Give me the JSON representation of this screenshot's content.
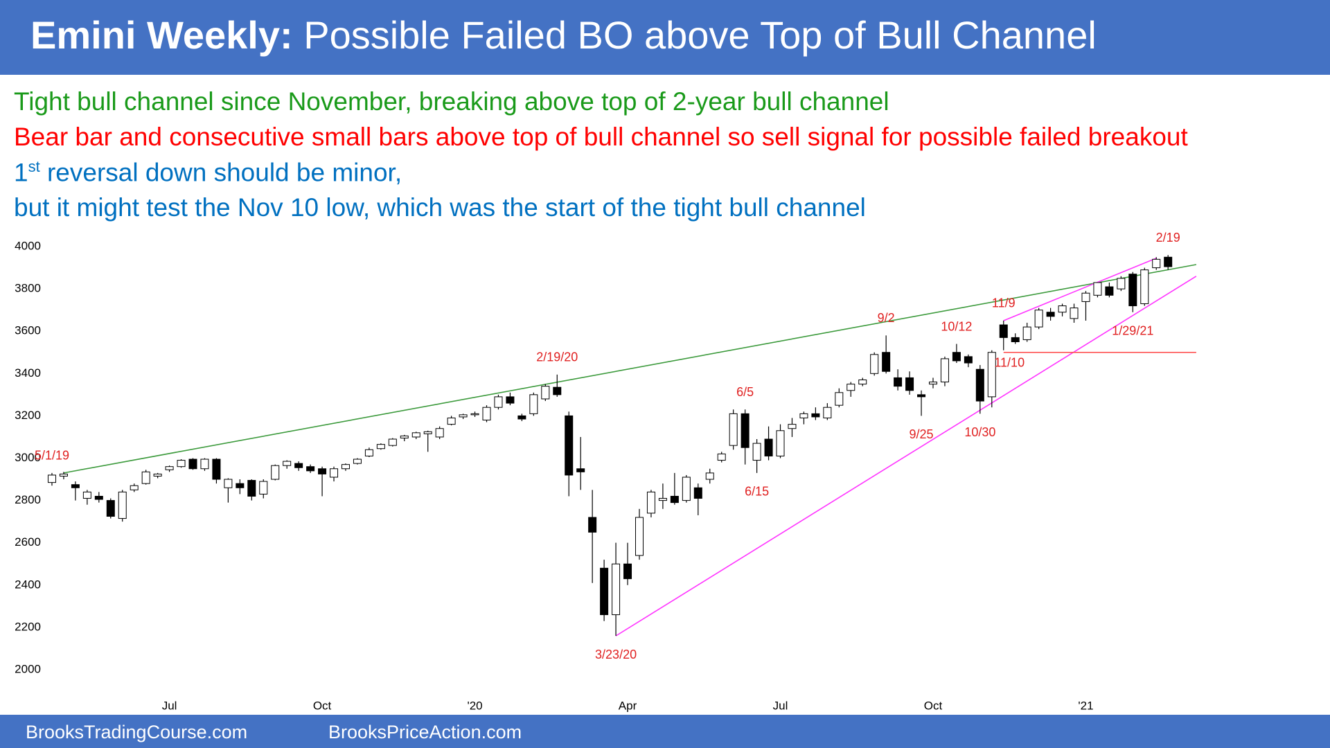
{
  "header": {
    "title_bold": "Emini Weekly:",
    "title": "Possible Failed BO above Top of Bull Channel"
  },
  "notes": [
    {
      "text": "Tight bull channel since November, breaking above top of 2-year bull channel",
      "color": "#1a9a1a"
    },
    {
      "text": "Bear bar and consecutive small bars above top of bull channel so sell signal for possible failed breakout",
      "color": "#ff0000"
    },
    {
      "text": "1",
      "sup": "st",
      "rest": " reversal down should be minor,",
      "color": "#0070c0"
    },
    {
      "text": "but it might test the Nov 10 low, which was the start of the tight bull channel",
      "color": "#0070c0"
    }
  ],
  "chart_data": {
    "type": "candlestick",
    "xlim": [
      -3,
      97.5
    ],
    "ylim": [
      1920,
      4080
    ],
    "yticks": [
      2000,
      2200,
      2400,
      2600,
      2800,
      3000,
      3200,
      3400,
      3600,
      3800,
      4000
    ],
    "xticks": [
      {
        "value": 10,
        "label": "Jul"
      },
      {
        "value": 23,
        "label": "Oct"
      },
      {
        "value": 36,
        "label": "'20"
      },
      {
        "value": 49,
        "label": "Apr"
      },
      {
        "value": 62,
        "label": "Jul"
      },
      {
        "value": 75,
        "label": "Oct"
      },
      {
        "value": 88,
        "label": "'21"
      }
    ],
    "up_color": "#ffffff",
    "down_color": "#000000",
    "open": [
      2885,
      2915,
      2875,
      2810,
      2820,
      2800,
      2715,
      2850,
      2880,
      2915,
      2945,
      2960,
      2995,
      2950,
      2995,
      2860,
      2880,
      2895,
      2830,
      2900,
      2965,
      2975,
      2960,
      2950,
      2910,
      2950,
      2975,
      3010,
      3045,
      3060,
      3095,
      3100,
      3115,
      3100,
      3160,
      3195,
      3205,
      3180,
      3240,
      3290,
      3200,
      3210,
      3280,
      3335,
      3200,
      2950,
      2720,
      2480,
      2260,
      2500,
      2540,
      2740,
      2800,
      2820,
      2800,
      2860,
      2900,
      2990,
      3060,
      3210,
      2990,
      3090,
      3010,
      3140,
      3190,
      3210,
      3190,
      3250,
      3320,
      3350,
      3400,
      3500,
      3380,
      3380,
      3300,
      3350,
      3360,
      3500,
      3480,
      3420,
      3290,
      3630,
      3570,
      3560,
      3620,
      3690,
      3690,
      3660,
      3740,
      3770,
      3810,
      3800,
      3870,
      3730,
      3900,
      3950
    ],
    "high": [
      2930,
      2935,
      2890,
      2850,
      2840,
      2810,
      2850,
      2880,
      2945,
      2930,
      2965,
      2995,
      3000,
      3000,
      3000,
      2905,
      2900,
      2900,
      2900,
      2970,
      2990,
      2985,
      2970,
      2960,
      2960,
      2975,
      3000,
      3050,
      3070,
      3095,
      3110,
      3125,
      3130,
      3150,
      3200,
      3210,
      3220,
      3250,
      3300,
      3310,
      3210,
      3310,
      3350,
      3395,
      3220,
      3100,
      2850,
      2520,
      2600,
      2600,
      2760,
      2850,
      2880,
      2930,
      2920,
      2880,
      2950,
      3030,
      3230,
      3230,
      3090,
      3150,
      3160,
      3190,
      3220,
      3240,
      3260,
      3330,
      3360,
      3380,
      3500,
      3580,
      3420,
      3410,
      3320,
      3380,
      3480,
      3540,
      3490,
      3440,
      3510,
      3650,
      3590,
      3640,
      3710,
      3710,
      3730,
      3730,
      3790,
      3830,
      3830,
      3860,
      3880,
      3900,
      3950,
      3960
    ],
    "low": [
      2870,
      2900,
      2800,
      2780,
      2790,
      2715,
      2700,
      2840,
      2875,
      2905,
      2935,
      2955,
      2945,
      2940,
      2880,
      2790,
      2830,
      2800,
      2810,
      2895,
      2950,
      2940,
      2930,
      2820,
      2890,
      2940,
      2970,
      3005,
      3040,
      3055,
      3080,
      3090,
      3030,
      3090,
      3155,
      3185,
      3195,
      3170,
      3230,
      3250,
      3175,
      3200,
      3270,
      3290,
      2820,
      2850,
      2410,
      2230,
      2160,
      2400,
      2520,
      2720,
      2760,
      2780,
      2790,
      2730,
      2880,
      2980,
      3040,
      2970,
      2930,
      2990,
      3000,
      3100,
      3160,
      3180,
      3180,
      3240,
      3290,
      3340,
      3390,
      3400,
      3320,
      3300,
      3200,
      3330,
      3340,
      3450,
      3430,
      3210,
      3240,
      3510,
      3540,
      3550,
      3610,
      3650,
      3670,
      3640,
      3650,
      3760,
      3760,
      3790,
      3690,
      3720,
      3890,
      3890
    ],
    "close": [
      2920,
      2925,
      2860,
      2840,
      2805,
      2725,
      2840,
      2870,
      2935,
      2925,
      2960,
      2990,
      2950,
      2995,
      2900,
      2900,
      2860,
      2820,
      2890,
      2965,
      2985,
      2955,
      2940,
      2925,
      2950,
      2970,
      2995,
      3040,
      3065,
      3090,
      3105,
      3120,
      3125,
      3140,
      3190,
      3205,
      3210,
      3240,
      3290,
      3260,
      3185,
      3300,
      3340,
      3300,
      2920,
      2935,
      2650,
      2260,
      2500,
      2430,
      2720,
      2840,
      2810,
      2790,
      2910,
      2810,
      2930,
      3020,
      3210,
      3050,
      3070,
      3010,
      3130,
      3160,
      3210,
      3195,
      3240,
      3310,
      3350,
      3370,
      3490,
      3410,
      3340,
      3320,
      3290,
      3360,
      3470,
      3460,
      3450,
      3270,
      3500,
      3570,
      3550,
      3620,
      3700,
      3670,
      3720,
      3710,
      3780,
      3830,
      3770,
      3850,
      3720,
      3890,
      3940,
      3905
    ],
    "lines": [
      {
        "color": "#3c9a3c",
        "x": [
          1,
          97.4
        ],
        "y": [
          2930,
          3915
        ]
      },
      {
        "color": "#ff33ff",
        "x": [
          48,
          97.4
        ],
        "y": [
          2160,
          3860
        ]
      },
      {
        "color": "#ff33ff",
        "x": [
          81,
          94
        ],
        "y": [
          3650,
          3945
        ]
      },
      {
        "color": "#ff5555",
        "x": [
          81,
          97.4
        ],
        "y": [
          3500,
          3500
        ]
      }
    ],
    "annotation_color": "#e02020",
    "annotations": [
      {
        "text": "5/1/19",
        "x": 0,
        "at": "high"
      },
      {
        "text": "2/19/20",
        "x": 43,
        "at": "high"
      },
      {
        "text": "3/23/20",
        "x": 48,
        "at": "low"
      },
      {
        "text": "6/5",
        "x": 59,
        "at": "high"
      },
      {
        "text": "6/15",
        "x": 60,
        "at": "low"
      },
      {
        "text": "9/2",
        "x": 71,
        "at": "high"
      },
      {
        "text": "9/25",
        "x": 74,
        "at": "low"
      },
      {
        "text": "10/12",
        "x": 77,
        "at": "high"
      },
      {
        "text": "10/30",
        "x": 79,
        "at": "low"
      },
      {
        "text": "11/9",
        "x": 81,
        "at": "high"
      },
      {
        "text": "11/10",
        "x": 81.5,
        "at": "low"
      },
      {
        "text": "1/29/21",
        "x": 92,
        "at": "low"
      },
      {
        "text": "2/19",
        "x": 95,
        "at": "high"
      }
    ]
  },
  "footer": [
    "BrooksTradingCourse.com",
    "BrooksPriceAction.com"
  ]
}
